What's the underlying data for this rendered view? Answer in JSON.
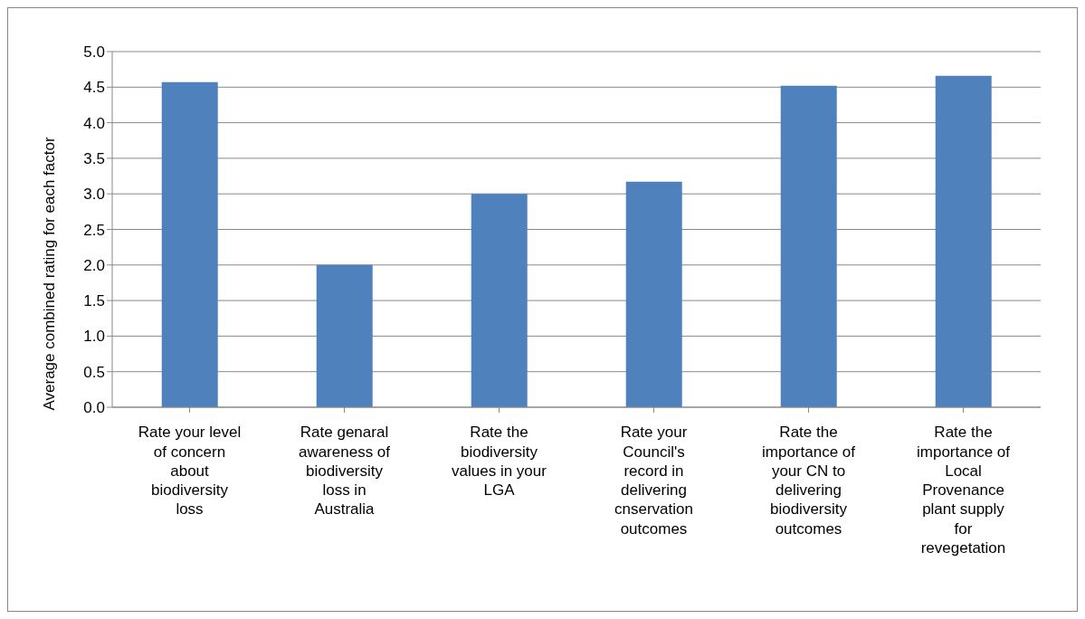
{
  "chart_data": {
    "type": "bar",
    "ylabel": "Average combined rating for each factor",
    "categories": [
      "Rate your level of concern about biodiversity loss",
      "Rate genaral awareness of biodiversity loss in Australia",
      "Rate the biodiversity values in your LGA",
      "Rate your Council's record in delivering cnservation outcomes",
      "Rate the importance of your CN to delivering biodiversity outcomes",
      "Rate the importance of Local Provenance plant supply for revegetation"
    ],
    "values": [
      4.57,
      2.0,
      3.0,
      3.17,
      4.52,
      4.66
    ],
    "color": "#4f81bd",
    "ylim": [
      0,
      5
    ],
    "yticks": [
      {
        "value": 0,
        "label": "0.0"
      },
      {
        "value": 0.5,
        "label": "0.5"
      },
      {
        "value": 1,
        "label": "1.0"
      },
      {
        "value": 1.5,
        "label": "1.5"
      },
      {
        "value": 2,
        "label": "2.0"
      },
      {
        "value": 2.5,
        "label": "2.5"
      },
      {
        "value": 3,
        "label": "3.0"
      },
      {
        "value": 3.5,
        "label": "3.5"
      },
      {
        "value": 4,
        "label": "4.0"
      },
      {
        "value": 4.5,
        "label": "4.5"
      },
      {
        "value": 5,
        "label": "5.0"
      }
    ],
    "grid": "y"
  }
}
